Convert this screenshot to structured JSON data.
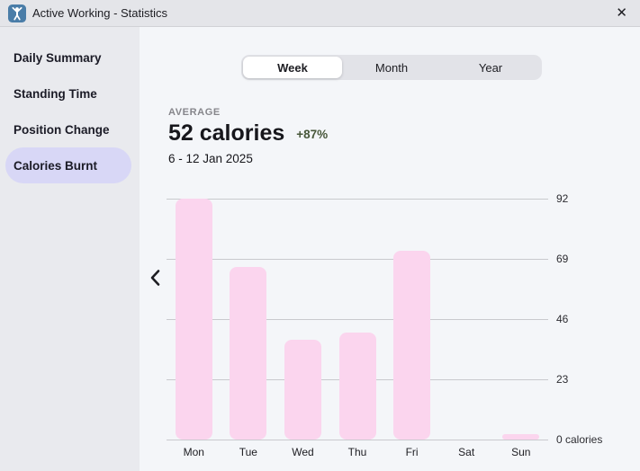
{
  "window": {
    "title": "Active Working - Statistics"
  },
  "icons": {
    "app": "active-working-app-icon",
    "close": "✕",
    "prev": "chevron-left"
  },
  "sidebar": {
    "items": [
      {
        "label": "Daily Summary",
        "active": false
      },
      {
        "label": "Standing Time",
        "active": false
      },
      {
        "label": "Position Change",
        "active": false
      },
      {
        "label": "Calories Burnt",
        "active": true
      }
    ]
  },
  "tabs": {
    "options": [
      "Week",
      "Month",
      "Year"
    ],
    "selected": "Week"
  },
  "summary": {
    "label": "AVERAGE",
    "value": "52 calories",
    "delta": "+87%",
    "date_range": "6 - 12 Jan 2025"
  },
  "chart_data": {
    "type": "bar",
    "categories": [
      "Mon",
      "Tue",
      "Wed",
      "Thu",
      "Fri",
      "Sat",
      "Sun"
    ],
    "values": [
      92,
      66,
      38,
      41,
      72,
      0,
      2
    ],
    "unit": "calories",
    "ylim": [
      0,
      92
    ],
    "yticks": [
      92,
      69,
      46,
      23,
      0
    ],
    "ytick_labels": [
      "92",
      "69",
      "46",
      "23",
      "0 calories"
    ],
    "grid": true,
    "tick_side": "right",
    "legend": "none",
    "bar_color": "#fbd5ee"
  },
  "colors": {
    "active_pill": "#d8d7f6",
    "bar_pink": "#fbd5ee",
    "delta_green": "#47573a",
    "app_icon_blue": "#4a7da8"
  }
}
